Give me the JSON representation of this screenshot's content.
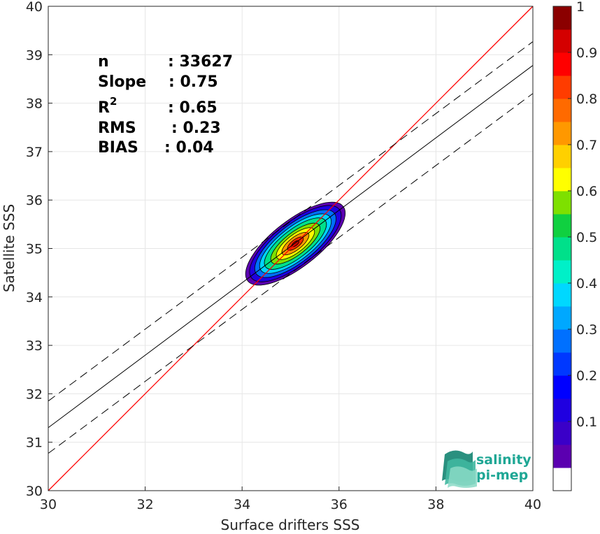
{
  "chart_data": {
    "type": "contour",
    "xlabel": "Surface drifters SSS",
    "ylabel": "Satellite SSS",
    "xlim": [
      30,
      40
    ],
    "ylim": [
      30,
      40
    ],
    "xticks": [
      "30",
      "32",
      "34",
      "36",
      "38",
      "40"
    ],
    "yticks": [
      "30",
      "31",
      "32",
      "33",
      "34",
      "35",
      "36",
      "37",
      "38",
      "39",
      "40"
    ],
    "grid": true,
    "stats": {
      "n_label": "n",
      "n_value": ": 33627",
      "slope_label": "Slope",
      "slope_value": ": 0.75",
      "r2_label": "R",
      "r2_sup": "2",
      "r2_value": ": 0.65",
      "rms_label": "RMS",
      "rms_value": ": 0.23",
      "bias_label": "BIAS",
      "bias_value": ": 0.04"
    },
    "lines": {
      "identity": {
        "slope": 1,
        "intercept": 0,
        "color": "#ff0000"
      },
      "regression": {
        "points": [
          [
            30,
            31.3
          ],
          [
            40,
            38.78
          ]
        ],
        "color": "#000000"
      },
      "upper_bound": {
        "points": [
          [
            30,
            31.85
          ],
          [
            40,
            39.27
          ]
        ],
        "style": "dashed"
      },
      "lower_bound": {
        "points": [
          [
            30,
            30.77
          ],
          [
            40,
            38.2
          ]
        ],
        "style": "dashed"
      }
    },
    "density_center": [
      35.1,
      35.1
    ],
    "density_levels": [
      {
        "level": 0.05,
        "color": "#5b00b0",
        "rx": 1.25,
        "ry": 0.48
      },
      {
        "level": 0.15,
        "color": "#1f00e0",
        "rx": 1.15,
        "ry": 0.44
      },
      {
        "level": 0.25,
        "color": "#006eff",
        "rx": 1.02,
        "ry": 0.39
      },
      {
        "level": 0.35,
        "color": "#00d4ff",
        "rx": 0.9,
        "ry": 0.34
      },
      {
        "level": 0.45,
        "color": "#00e08a",
        "rx": 0.78,
        "ry": 0.29
      },
      {
        "level": 0.55,
        "color": "#7ee000",
        "rx": 0.62,
        "ry": 0.23
      },
      {
        "level": 0.65,
        "color": "#ffff00",
        "rx": 0.48,
        "ry": 0.18
      },
      {
        "level": 0.75,
        "color": "#ff9800",
        "rx": 0.34,
        "ry": 0.13
      },
      {
        "level": 0.85,
        "color": "#ff2a00",
        "rx": 0.2,
        "ry": 0.08
      },
      {
        "level": 0.95,
        "color": "#b00000",
        "rx": 0.09,
        "ry": 0.04
      }
    ],
    "colorbar": {
      "ticks": [
        "0.1",
        "0.2",
        "0.3",
        "0.4",
        "0.5",
        "0.6",
        "0.7",
        "0.8",
        "0.9",
        "1"
      ],
      "colors": [
        "#ffffff",
        "#5b00b0",
        "#3a00c8",
        "#1f00e0",
        "#0000ff",
        "#0038ff",
        "#0070ff",
        "#00a8ff",
        "#00d8ff",
        "#00f0c8",
        "#00e08a",
        "#10d040",
        "#7ee000",
        "#ffff00",
        "#ffd000",
        "#ff9800",
        "#ff6a00",
        "#ff3c00",
        "#ff0000",
        "#d40000",
        "#8b0000"
      ]
    }
  },
  "logo": {
    "line1": "salinity",
    "line2": "pi-mep"
  }
}
